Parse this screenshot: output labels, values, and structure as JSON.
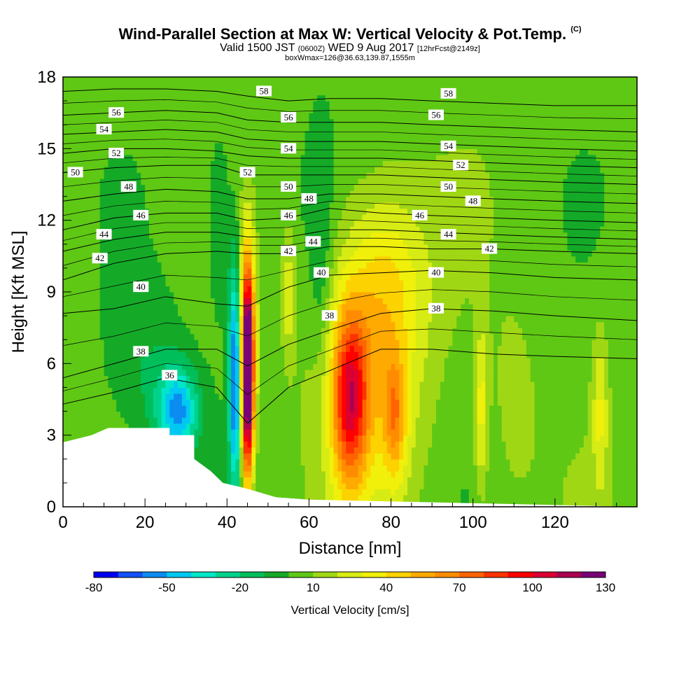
{
  "header": {
    "title": "Wind-Parallel Section at Max W: Vertical Velocity & Pot.Temp.",
    "copyright": "(C)",
    "valid_prefix": "Valid 1500 JST",
    "valid_utc": "(0600Z)",
    "valid_date": "WED 9 Aug 2017",
    "forecast": "[12hrFcst@2149z]",
    "box_info": "boxWmax=126@36.63,139.87,1555m"
  },
  "colors": {
    "background": "#ffffff",
    "terrain": "#ffffff",
    "contour_line": "#000000",
    "scale": [
      "#0000f0",
      "#1450f5",
      "#0a8cf0",
      "#00c8f0",
      "#00e6c8",
      "#00d28c",
      "#00be5a",
      "#14aa28",
      "#5fc814",
      "#a0d714",
      "#d7ec14",
      "#f0f00a",
      "#fcd200",
      "#ffaa00",
      "#ff8c00",
      "#ff6400",
      "#ff3200",
      "#ff0000",
      "#dc0032",
      "#aa0050",
      "#780078"
    ]
  },
  "chart_data": {
    "type": "heatmap",
    "subtype": "cross-section with contour overlay",
    "xlabel": "Distance [nm]",
    "ylabel": "Height [Kft MSL]",
    "xlim": [
      0,
      140
    ],
    "ylim": [
      0,
      18
    ],
    "xticks": [
      0,
      20,
      40,
      60,
      80,
      100,
      120
    ],
    "yticks": [
      0,
      3,
      6,
      9,
      12,
      15,
      18
    ],
    "colorbar": {
      "label": "Vertical Velocity [cm/s]",
      "ticks": [
        -80,
        -50,
        -20,
        10,
        40,
        70,
        100,
        130
      ],
      "min": -80,
      "max": 130,
      "step": 10
    },
    "background_w": 5,
    "w_features": [
      {
        "x": 28,
        "y": 4.0,
        "sx": 3.5,
        "sy": 1.3,
        "w": -55,
        "desc": "downdraft over terrain edge"
      },
      {
        "x": 20,
        "y": 5.5,
        "sx": 7,
        "sy": 2.5,
        "w": -15
      },
      {
        "x": 42,
        "y": 5.5,
        "sx": 1.1,
        "sy": 3.3,
        "w": -75,
        "desc": "narrow downdraft"
      },
      {
        "x": 45,
        "y": 5.5,
        "sx": 1.0,
        "sy": 3.0,
        "w": 135,
        "desc": "narrow updraft core"
      },
      {
        "x": 45,
        "y": 7.0,
        "sx": 1.8,
        "sy": 3.5,
        "w": 40
      },
      {
        "x": 55,
        "y": 9.0,
        "sx": 1.2,
        "sy": 2.0,
        "w": 25
      },
      {
        "x": 70,
        "y": 4.5,
        "sx": 3.0,
        "sy": 2.5,
        "w": 75,
        "desc": "broad updraft core"
      },
      {
        "x": 75,
        "y": 6.0,
        "sx": 9.0,
        "sy": 4.5,
        "w": 35
      },
      {
        "x": 81,
        "y": 3.8,
        "sx": 2.0,
        "sy": 1.8,
        "w": 40
      },
      {
        "x": 79,
        "y": 9.5,
        "sx": 7.0,
        "sy": 2.5,
        "w": 20
      },
      {
        "x": 102,
        "y": 4.0,
        "sx": 1.2,
        "sy": 2.5,
        "w": 30
      },
      {
        "x": 131,
        "y": 4.0,
        "sx": 1.3,
        "sy": 2.5,
        "w": 25
      },
      {
        "x": 110,
        "y": 4.0,
        "sx": 4.0,
        "sy": 3.0,
        "w": 10
      },
      {
        "x": 63,
        "y": 10.0,
        "sx": 2.0,
        "sy": 4.0,
        "w": -15
      },
      {
        "x": 38,
        "y": 12.0,
        "sx": 2.0,
        "sy": 3.0,
        "w": -12
      },
      {
        "x": 50,
        "y": 12.0,
        "sx": 10.0,
        "sy": 4.0,
        "w": -8
      }
    ],
    "terrain": [
      {
        "x": 0,
        "h": 2.7
      },
      {
        "x": 7,
        "h": 3.0
      },
      {
        "x": 11,
        "h": 3.3
      },
      {
        "x": 26,
        "h": 3.3
      },
      {
        "x": 26,
        "h": 3.0
      },
      {
        "x": 32,
        "h": 3.0
      },
      {
        "x": 32,
        "h": 2.0
      },
      {
        "x": 36,
        "h": 1.5
      },
      {
        "x": 39,
        "h": 1.0
      },
      {
        "x": 44,
        "h": 0.8
      },
      {
        "x": 48,
        "h": 0.6
      },
      {
        "x": 52,
        "h": 0.4
      },
      {
        "x": 60,
        "h": 0.3
      },
      {
        "x": 140,
        "h": 0.0
      }
    ],
    "theta_contours": [
      {
        "value": 36,
        "y": [
          4.3,
          4.8,
          5.4,
          5.0,
          3.5,
          5.0,
          5.7,
          6.6,
          6.6,
          6.4,
          6.3,
          6.2
        ]
      },
      {
        "value": 38,
        "y": [
          5.4,
          6.0,
          6.6,
          6.6,
          5.9,
          6.8,
          7.4,
          8.1,
          8.3,
          8.2,
          8.0,
          7.8
        ]
      },
      {
        "value": 40,
        "y": [
          8.1,
          8.3,
          8.8,
          8.5,
          8.4,
          9.2,
          9.7,
          9.8,
          9.9,
          9.8,
          9.6,
          9.5
        ]
      },
      {
        "value": 42,
        "y": [
          9.5,
          10.2,
          10.6,
          10.7,
          10.6,
          10.6,
          10.9,
          10.9,
          10.8,
          10.8,
          10.7,
          10.6
        ]
      },
      {
        "value": 44,
        "y": [
          10.7,
          11.2,
          11.5,
          11.5,
          11.3,
          11.3,
          11.6,
          11.6,
          11.5,
          11.4,
          11.3,
          11.2
        ]
      },
      {
        "value": 46,
        "y": [
          11.6,
          12.1,
          12.3,
          12.3,
          12.0,
          12.1,
          12.5,
          12.3,
          12.2,
          12.1,
          12.0,
          11.9
        ]
      },
      {
        "value": 48,
        "y": [
          12.8,
          13.1,
          13.3,
          13.2,
          12.9,
          12.9,
          13.1,
          13.1,
          13.0,
          12.9,
          12.8,
          12.7
        ]
      },
      {
        "value": 50,
        "y": [
          14.0,
          14.2,
          14.3,
          14.3,
          13.9,
          13.9,
          13.9,
          13.9,
          13.8,
          13.7,
          13.6,
          13.5
        ]
      },
      {
        "value": 52,
        "y": [
          14.8,
          15.0,
          15.0,
          14.9,
          14.7,
          14.6,
          14.6,
          14.6,
          14.5,
          14.4,
          14.3,
          14.2
        ]
      },
      {
        "value": 54,
        "y": [
          15.6,
          15.7,
          15.8,
          15.7,
          15.4,
          15.3,
          15.3,
          15.3,
          15.2,
          15.1,
          15.0,
          14.9
        ]
      },
      {
        "value": 56,
        "y": [
          16.4,
          16.5,
          16.6,
          16.5,
          16.2,
          16.1,
          16.1,
          16.1,
          16.0,
          15.9,
          15.8,
          15.7
        ]
      },
      {
        "value": 58,
        "y": [
          17.4,
          17.5,
          17.5,
          17.4,
          17.2,
          17.0,
          17.1,
          17.1,
          17.0,
          16.9,
          16.8,
          16.8
        ]
      }
    ],
    "contour_x": [
      0,
      12.5,
      25,
      37.5,
      45,
      55,
      65,
      77.5,
      90,
      105,
      120,
      140
    ],
    "contour_labels": [
      {
        "text": "58",
        "x": 49,
        "y": 17.4
      },
      {
        "text": "58",
        "x": 94,
        "y": 17.3
      },
      {
        "text": "56",
        "x": 13,
        "y": 16.5
      },
      {
        "text": "56",
        "x": 55,
        "y": 16.3
      },
      {
        "text": "56",
        "x": 91,
        "y": 16.4
      },
      {
        "text": "54",
        "x": 10,
        "y": 15.8
      },
      {
        "text": "54",
        "x": 55,
        "y": 15.0
      },
      {
        "text": "54",
        "x": 94,
        "y": 15.1
      },
      {
        "text": "52",
        "x": 13,
        "y": 14.8
      },
      {
        "text": "52",
        "x": 45,
        "y": 14.0
      },
      {
        "text": "52",
        "x": 97,
        "y": 14.3
      },
      {
        "text": "50",
        "x": 3,
        "y": 14.0
      },
      {
        "text": "50",
        "x": 55,
        "y": 13.4
      },
      {
        "text": "50",
        "x": 94,
        "y": 13.4
      },
      {
        "text": "48",
        "x": 16,
        "y": 13.4
      },
      {
        "text": "48",
        "x": 60,
        "y": 12.9
      },
      {
        "text": "48",
        "x": 100,
        "y": 12.8
      },
      {
        "text": "46",
        "x": 19,
        "y": 12.2
      },
      {
        "text": "46",
        "x": 55,
        "y": 12.2
      },
      {
        "text": "46",
        "x": 87,
        "y": 12.2
      },
      {
        "text": "44",
        "x": 10,
        "y": 11.4
      },
      {
        "text": "44",
        "x": 61,
        "y": 11.1
      },
      {
        "text": "44",
        "x": 94,
        "y": 11.4
      },
      {
        "text": "42",
        "x": 9,
        "y": 10.4
      },
      {
        "text": "42",
        "x": 55,
        "y": 10.7
      },
      {
        "text": "42",
        "x": 104,
        "y": 10.8
      },
      {
        "text": "40",
        "x": 19,
        "y": 9.2
      },
      {
        "text": "40",
        "x": 63,
        "y": 9.8
      },
      {
        "text": "40",
        "x": 91,
        "y": 9.8
      },
      {
        "text": "38",
        "x": 19,
        "y": 6.5
      },
      {
        "text": "38",
        "x": 65,
        "y": 8.0
      },
      {
        "text": "38",
        "x": 91,
        "y": 8.3
      },
      {
        "text": "36",
        "x": 26,
        "y": 5.5
      }
    ]
  }
}
